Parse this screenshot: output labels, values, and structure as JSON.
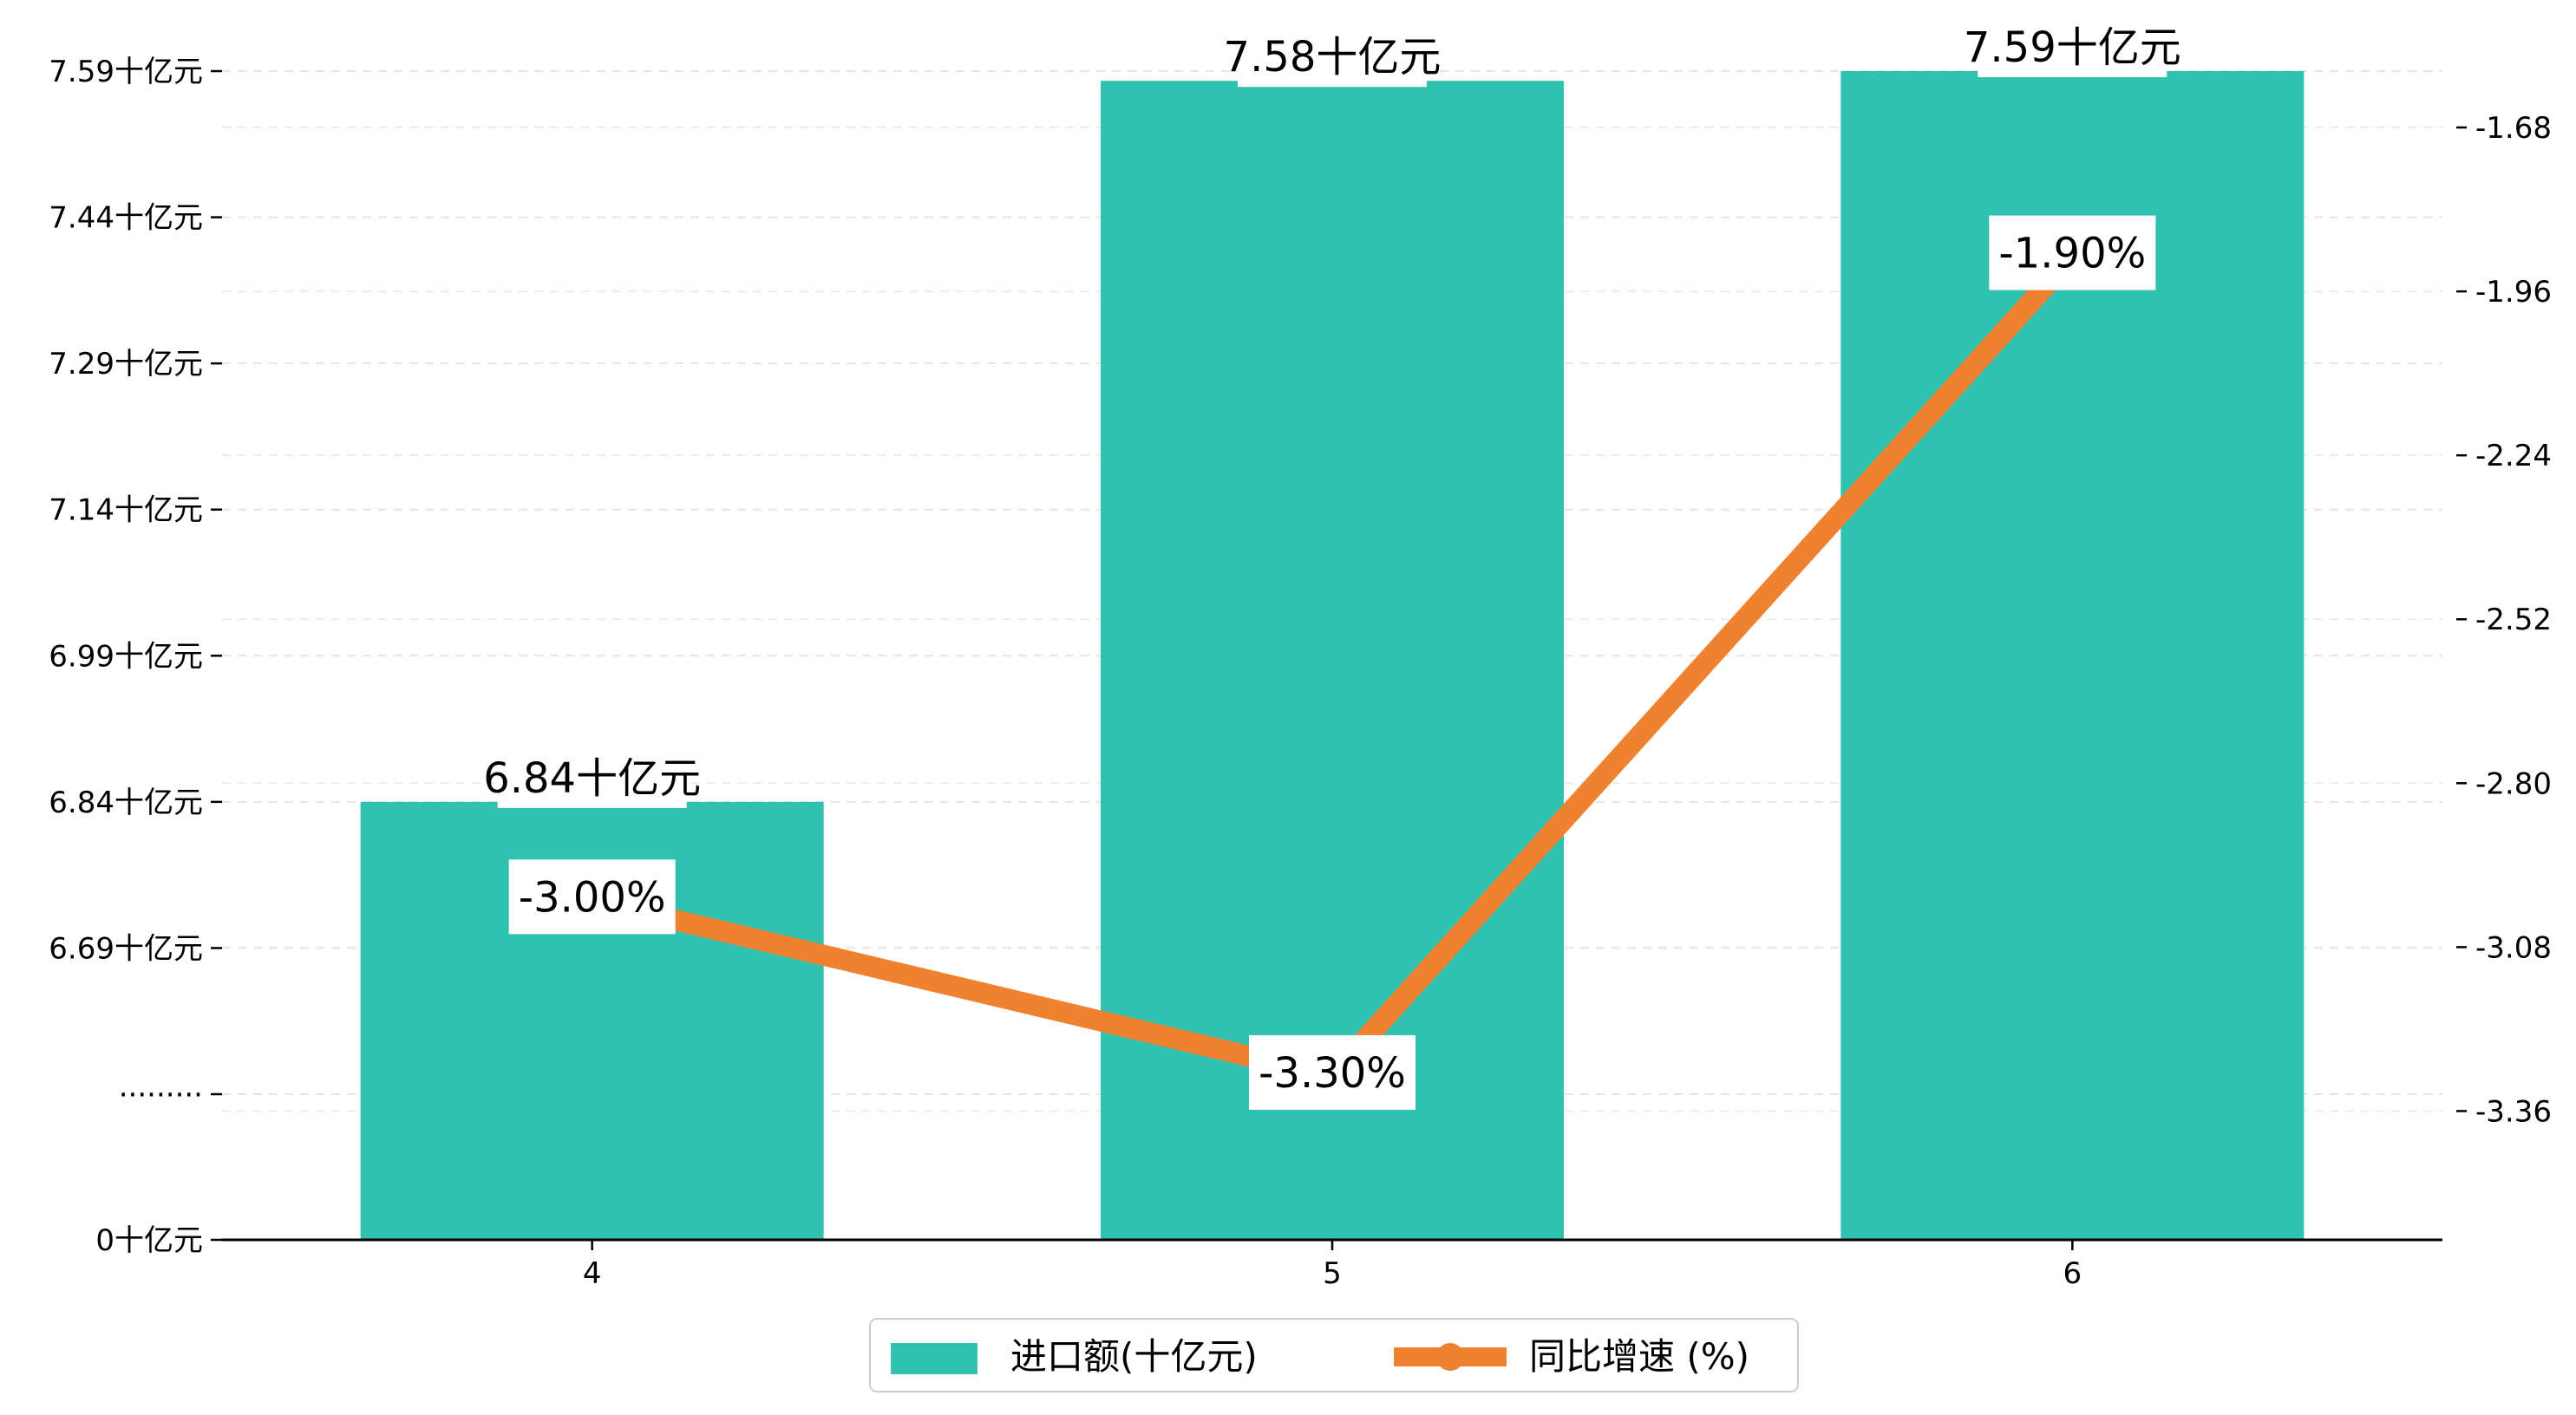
{
  "chart_data": {
    "type": "bar+line",
    "title": "",
    "xlabel": "",
    "ylabel": "",
    "categories": [
      "4",
      "5",
      "6"
    ],
    "series": [
      {
        "name": "进口额(十亿元)",
        "type": "bar",
        "axis": "left",
        "values": [
          6.84,
          7.58,
          7.59
        ],
        "labels": [
          "6.84十亿元",
          "7.58十亿元",
          "7.59十亿元"
        ],
        "color": "#1ABAA8"
      },
      {
        "name": "同比增速 (%)",
        "type": "line",
        "axis": "right",
        "values": [
          -3.0,
          -3.3,
          -1.9
        ],
        "labels": [
          "-3.00%",
          "-3.30%",
          "-1.90%"
        ],
        "color": "#F0812E"
      }
    ],
    "left_axis": {
      "broken": true,
      "break_label": "·········",
      "zero_label": "0十亿元",
      "ticks": [
        6.69,
        6.84,
        6.99,
        7.14,
        7.29,
        7.44,
        7.59
      ],
      "tick_labels": [
        "6.69十亿元",
        "6.84十亿元",
        "6.99十亿元",
        "7.14十亿元",
        "7.29十亿元",
        "7.44十亿元",
        "7.59十亿元"
      ]
    },
    "right_axis": {
      "ylim": [
        -3.58,
        -1.56
      ],
      "ticks": [
        -3.36,
        -3.08,
        -2.8,
        -2.52,
        -2.24,
        -1.96,
        -1.68
      ],
      "tick_labels": [
        "-3.36",
        "-3.08",
        "-2.80",
        "-2.52",
        "-2.24",
        "-1.96",
        "-1.68"
      ]
    },
    "grid": true,
    "legend": "bottom-center"
  }
}
